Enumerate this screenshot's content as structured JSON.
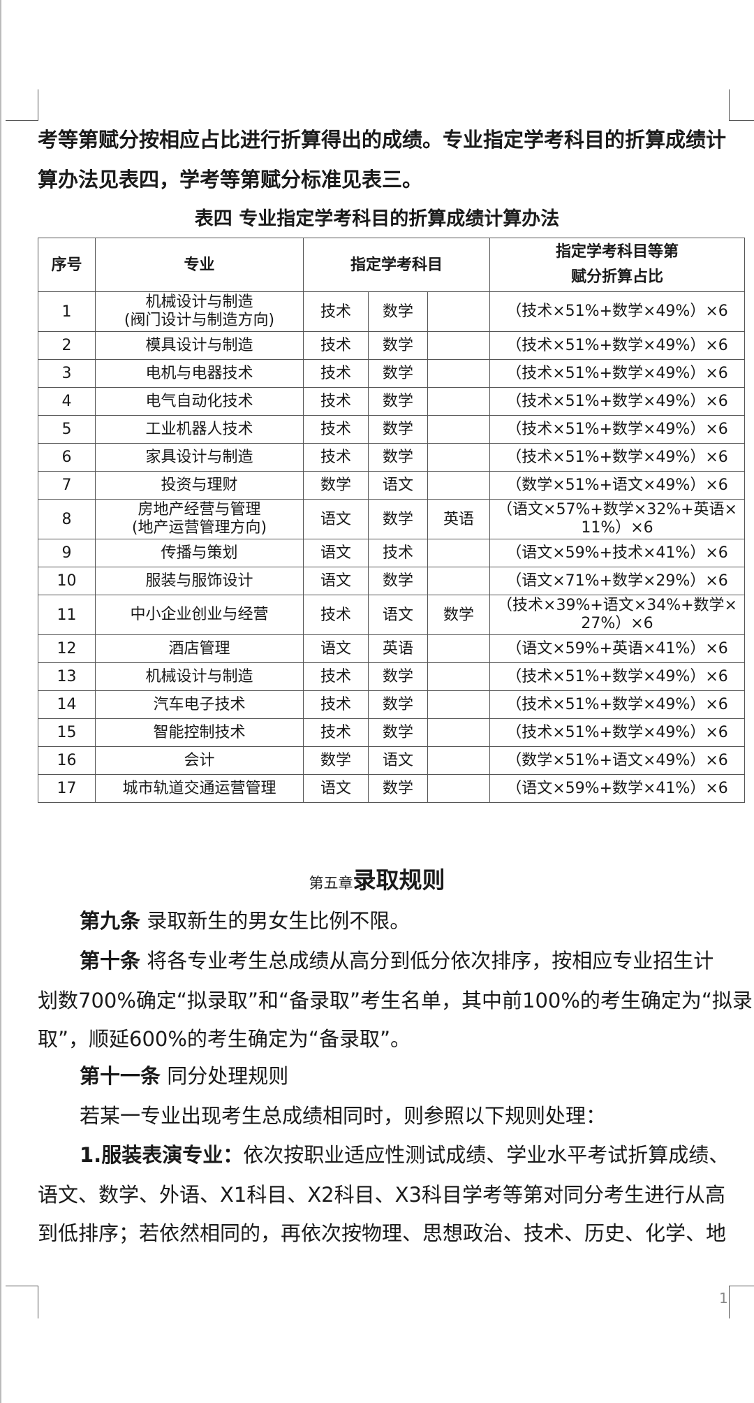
{
  "intro_lines": [
    "考等第赋分按相应占比进行折算得出的成绩。专业指定学考科目的折算成绩计",
    "算办法见表四，学考等第赋分标准见表三。"
  ],
  "table_title": "表四  专业指定学考科目的折算成绩计算办法",
  "table": {
    "headers": [
      "序号",
      "专业",
      "指定学考科目",
      "指定学考科目等第\n赋分折算占比"
    ],
    "rows": [
      {
        "no": "1",
        "major": "机械设计与制造\n(阀门设计与制造方向)",
        "s1": "技术",
        "s2": "数学",
        "s3": "",
        "formula": "（技术×51%+数学×49%）×6"
      },
      {
        "no": "2",
        "major": "模具设计与制造",
        "s1": "技术",
        "s2": "数学",
        "s3": "",
        "formula": "（技术×51%+数学×49%）×6"
      },
      {
        "no": "3",
        "major": "电机与电器技术",
        "s1": "技术",
        "s2": "数学",
        "s3": "",
        "formula": "（技术×51%+数学×49%）×6"
      },
      {
        "no": "4",
        "major": "电气自动化技术",
        "s1": "技术",
        "s2": "数学",
        "s3": "",
        "formula": "（技术×51%+数学×49%）×6"
      },
      {
        "no": "5",
        "major": "工业机器人技术",
        "s1": "技术",
        "s2": "数学",
        "s3": "",
        "formula": "（技术×51%+数学×49%）×6"
      },
      {
        "no": "6",
        "major": "家具设计与制造",
        "s1": "技术",
        "s2": "数学",
        "s3": "",
        "formula": "（技术×51%+数学×49%）×6"
      },
      {
        "no": "7",
        "major": "投资与理财",
        "s1": "数学",
        "s2": "语文",
        "s3": "",
        "formula": "（数学×51%+语文×49%）×6"
      },
      {
        "no": "8",
        "major": "房地产经营与管理\n(地产运营管理方向)",
        "s1": "语文",
        "s2": "数学",
        "s3": "英语",
        "formula": "（语文×57%+数学×32%+英语×\n11%）×6"
      },
      {
        "no": "9",
        "major": "传播与策划",
        "s1": "语文",
        "s2": "技术",
        "s3": "",
        "formula": "（语文×59%+技术×41%）×6"
      },
      {
        "no": "10",
        "major": "服装与服饰设计",
        "s1": "语文",
        "s2": "数学",
        "s3": "",
        "formula": "（语文×71%+数学×29%）×6"
      },
      {
        "no": "11",
        "major": "中小企业创业与经营",
        "s1": "技术",
        "s2": "语文",
        "s3": "数学",
        "formula": "（技术×39%+语文×34%+数学×\n27%）×6"
      },
      {
        "no": "12",
        "major": "酒店管理",
        "s1": "语文",
        "s2": "英语",
        "s3": "",
        "formula": "（语文×59%+英语×41%）×6"
      },
      {
        "no": "13",
        "major": "机械设计与制造",
        "s1": "技术",
        "s2": "数学",
        "s3": "",
        "formula": "（技术×51%+数学×49%）×6"
      },
      {
        "no": "14",
        "major": "汽车电子技术",
        "s1": "技术",
        "s2": "数学",
        "s3": "",
        "formula": "（技术×51%+数学×49%）×6"
      },
      {
        "no": "15",
        "major": "智能控制技术",
        "s1": "技术",
        "s2": "数学",
        "s3": "",
        "formula": "（技术×51%+数学×49%）×6"
      },
      {
        "no": "16",
        "major": "会计",
        "s1": "数学",
        "s2": "语文",
        "s3": "",
        "formula": "（数学×51%+语文×49%）×6"
      },
      {
        "no": "17",
        "major": "城市轨道交通运营管理",
        "s1": "语文",
        "s2": "数学",
        "s3": "",
        "formula": "（语文×59%+数学×41%）×6"
      }
    ]
  },
  "chapter": {
    "prefix": "第五章",
    "title": "录取规则"
  },
  "art9": {
    "label": "第九条",
    "text": " 录取新生的男女生比例不限。"
  },
  "art10": {
    "label": "第十条",
    "text": " 将各专业考生总成绩从高分到低分依次排序，按相应专业招生计",
    "cont": [
      "划数700%确定“拟录取”和“备录取”考生名单，其中前100%的考生确定为“拟录",
      "取”，顺延600%的考生确定为“备录取”。"
    ]
  },
  "art11": {
    "label": "第十一条",
    "text": " 同分处理规则"
  },
  "tie_intro": "若某一专业出现考生总成绩相同时，则参照以下规则处理：",
  "rule1": {
    "label": "1.服装表演专业：",
    "text": "依次按职业适应性测试成绩、学业水平考试折算成绩、",
    "cont": [
      "语文、数学、外语、X1科目、X2科目、X3科目学考等第对同分考生进行从高",
      "到低排序；若依然相同的，再依次按物理、思想政治、技术、历史、化学、地"
    ]
  },
  "page_number": "1"
}
